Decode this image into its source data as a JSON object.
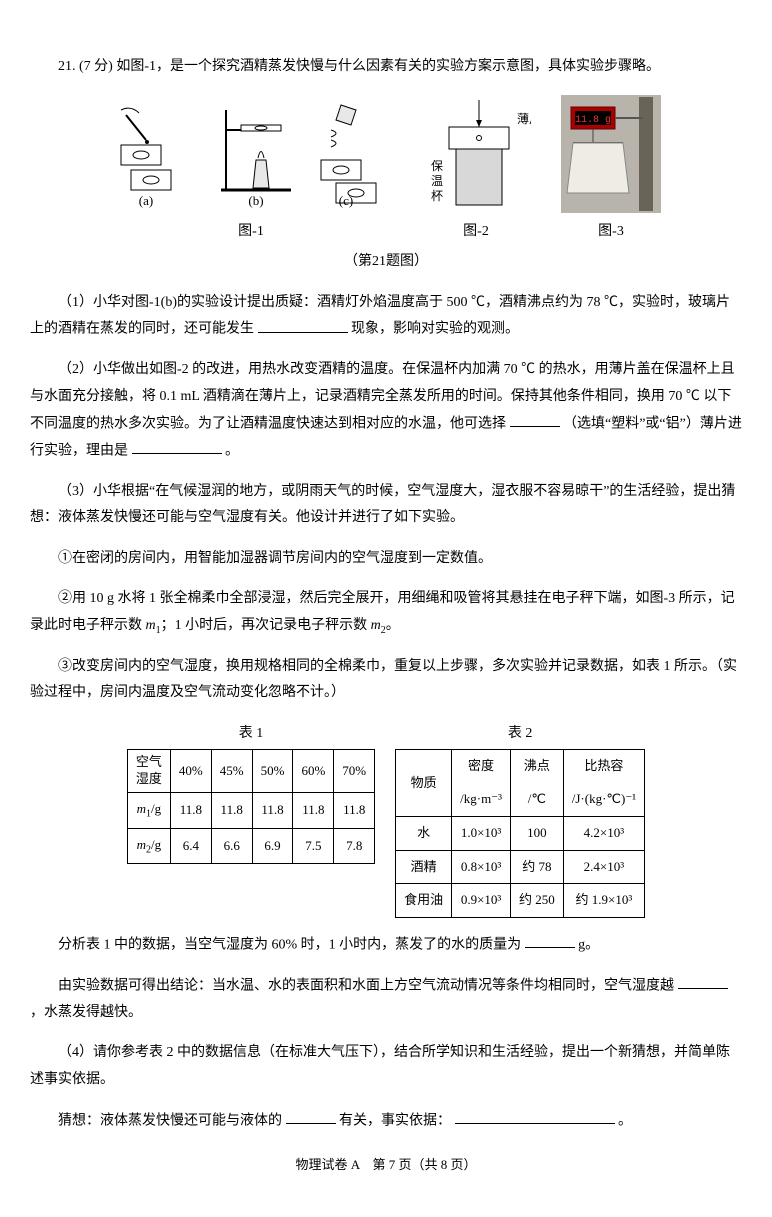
{
  "q": {
    "num": "21.",
    "points": "(7 分)",
    "lead": "如图-1，是一个探究酒精蒸发快慢与什么因素有关的实验方案示意图，具体实验步骤略。",
    "fig1": "图-1",
    "fig2": "图-2",
    "fig3": "图-3",
    "grouptitle": "（第21题图）",
    "p1": "（1）小华对图-1(b)的实验设计提出质疑：酒精灯外焰温度高于 500 ℃，酒精沸点约为 78 ℃，实验时，玻璃片上的酒精在蒸发的同时，还可能发生",
    "p1b": "现象，影响对实验的观测。",
    "p2": "（2）小华做出如图-2 的改进，用热水改变酒精的温度。在保温杯内加满 70 ℃ 的热水，用薄片盖在保温杯上且与水面充分接触，将 0.1 mL 酒精滴在薄片上，记录酒精完全蒸发所用的时间。保持其他条件相同，换用 70 ℃ 以下不同温度的热水多次实验。为了让酒精温度快速达到相对应的水温，他可选择",
    "p2b": "（选填“塑料”或“铝”）薄片进行实验，理由是",
    "p2c": "。",
    "p3": "（3）小华根据“在气候湿润的地方，或阴雨天气的时候，空气湿度大，湿衣服不容易晾干”的生活经验，提出猜想：液体蒸发快慢还可能与空气湿度有关。他设计并进行了如下实验。",
    "s1": "①在密闭的房间内，用智能加湿器调节房间内的空气湿度到一定数值。",
    "s2a": "②用 10 g 水将 1 张全棉柔巾全部浸湿，然后完全展开，用细绳和吸管将其悬挂在电子秤下端，如图-3 所示，记录此时电子秤示数 ",
    "s2m1": "m",
    "s2sub1": "1",
    "s2b": "；1 小时后，再次记录电子秤示数 ",
    "s2m2": "m",
    "s2sub2": "2",
    "s2c": "。",
    "s3": "③改变房间内的空气湿度，换用规格相同的全棉柔巾，重复以上步骤，多次实验并记录数据，如表 1 所示。（实验过程中，房间内温度及空气流动变化忽略不计。）",
    "t1cap": "表 1",
    "t2cap": "表 2",
    "t1": {
      "r0": [
        "空气湿度",
        "40%",
        "45%",
        "50%",
        "60%",
        "70%"
      ],
      "r1h": "m",
      "r1s": "1",
      "r1u": "/g",
      "r1": [
        "11.8",
        "11.8",
        "11.8",
        "11.8",
        "11.8"
      ],
      "r2h": "m",
      "r2s": "2",
      "r2u": "/g",
      "r2": [
        "6.4",
        "6.6",
        "6.9",
        "7.5",
        "7.8"
      ]
    },
    "t2": {
      "head": [
        "物质",
        "密度",
        "沸点",
        "比热容"
      ],
      "unit": [
        "",
        "/kg·m⁻³",
        "/℃",
        "/J·(kg·℃)⁻¹"
      ],
      "rows": [
        [
          "水",
          "1.0×10³",
          "100",
          "4.2×10³"
        ],
        [
          "酒精",
          "0.8×10³",
          "约 78",
          "2.4×10³"
        ],
        [
          "食用油",
          "0.9×10³",
          "约 250",
          "约 1.9×10³"
        ]
      ]
    },
    "a1": "分析表 1 中的数据，当空气湿度为 60% 时，1 小时内，蒸发了的水的质量为",
    "a1b": "g。",
    "a2": "由实验数据可得出结论：当水温、水的表面积和水面上方空气流动情况等条件均相同时，空气湿度越",
    "a2b": "，水蒸发得越快。",
    "p4": "（4）请你参考表 2 中的数据信息（在标准大气压下），结合所学知识和生活经验，提出一个新猜想，并简单陈述事实依据。",
    "g1": "猜想：液体蒸发快慢还可能与液体的",
    "g1b": "有关，事实依据：",
    "g1c": "。",
    "labels": {
      "a": "(a)",
      "b": "(b)",
      "c": "(c)",
      "sheet": "薄片",
      "cup": "保温杯",
      "display": "11.8"
    }
  },
  "footer": "物理试卷 A　第 7 页（共 8 页）"
}
